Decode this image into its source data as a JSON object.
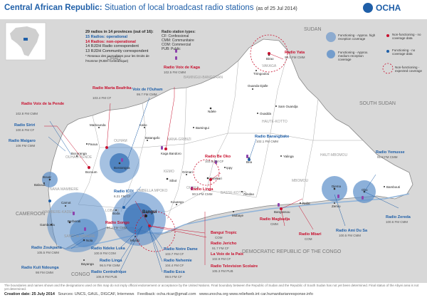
{
  "header": {
    "title_main": "Central African Republic:",
    "title_sub": "Situation of local broadcast radio stations",
    "title_date": "(as of 25 Jul 2014)",
    "org": "OCHA"
  },
  "stats": {
    "line1": "29 radios in 14 provinces (out of 16):",
    "line2": "15 Radios: operational",
    "line3": "14 Radios: non-operational",
    "line4": "14 RJDH Radio correspondent",
    "line5": "13 RJDH Community correspondent",
    "line6": "* Reseaux des journalistes pour les Droits de l'Homme (RJDH-Centrafrique)"
  },
  "types": {
    "heading": "Radio station types:",
    "items": [
      "CF: Confessional",
      "CMM: Communitaire",
      "COM: Commercial",
      "PUB: Public"
    ]
  },
  "legend": {
    "items": [
      "Functioning - Approx. high reception coverage",
      "Non-functioning - no coverage data",
      "Functioning - Approx. medium reception coverage",
      "Functioning - no coverage data",
      "Non-functioning - expected coverage"
    ]
  },
  "countries": [
    "CHAD",
    "SUDAN",
    "SOUTH SUDAN",
    "CAMEROON",
    "CONGO",
    "DEMOCRATIC REPUBLIC OF THE CONGO"
  ],
  "prefectures": [
    "VAKAGA",
    "BAMINGUI-BANGORAN",
    "HAUTE-KOTTO",
    "HAUT-MBOMOU",
    "MBOMOU",
    "BASSE-KOTTO",
    "NANA-GRIBIZI",
    "OUHAM",
    "OUHAM PENDE",
    "NANA MAMBERE",
    "MAMBERE-KADEI",
    "SANGHA-MBAERE",
    "LOBAYE",
    "OMBELLA MPOKO",
    "KEMO",
    "OUAKA"
  ],
  "towns": [
    "Birao",
    "Tiringoulou",
    "Ouanda Djalle",
    "Sam Ouandja",
    "Ouadda",
    "Ndele",
    "Bamingui",
    "Kaga Bandoro",
    "Batangafo",
    "Kabo",
    "Markounda",
    "Bossangoa",
    "Bozoum",
    "Bocaranga",
    "Paoua",
    "Bouar",
    "Baboua",
    "Carnot",
    "Berberati",
    "Gamboula",
    "Nola",
    "Bayanga",
    "Boda",
    "Mbaiki",
    "Bangui",
    "Sibut",
    "Bambari",
    "Ippy",
    "Bria",
    "Yalinga",
    "Alindao",
    "Mobaye",
    "Bangassou",
    "Rafai",
    "Zemio",
    "Obo",
    "Djema",
    "Bambouti",
    "Kouango",
    "Grimari",
    "Dekoa",
    "Bouca",
    "Kembe",
    "Mingala",
    "Gambo",
    "Ouango",
    "Bakouma",
    "Bossembele",
    "Yaloke",
    "Bozoum",
    "Bouar"
  ],
  "radios": [
    {
      "name": "Radio Voix de Kaga",
      "freq": "102.5 FM CMM",
      "color": "#c8102e"
    },
    {
      "name": "Radio Marta Beafrika",
      "freq": "103.4 FM CF",
      "color": "#c8102e"
    },
    {
      "name": "Voix de l'Ouham",
      "freq": "99.7 FM CMM",
      "color": "#1f5fa8"
    },
    {
      "name": "Radio Voix de la Pende",
      "freq": "102.8 FM CMM",
      "color": "#c8102e"
    },
    {
      "name": "Radio Siriri",
      "freq": "100.6 FM CF",
      "color": "#1f5fa8"
    },
    {
      "name": "Radio Maigaro",
      "freq": "106 FM CMM",
      "color": "#1f5fa8"
    },
    {
      "name": "Radio Yata",
      "freq": "98.0 FM CMM",
      "color": "#c8102e"
    },
    {
      "name": "Radio Barangbake",
      "freq": "102.1 FM CMM",
      "color": "#1f5fa8"
    },
    {
      "name": "Radio Be Oko",
      "freq": "103.5 FM CF",
      "color": "#c8102e"
    },
    {
      "name": "Radio Linga",
      "freq": "90.5 FM CMM",
      "color": "#c8102e"
    },
    {
      "name": "Radio ICDI",
      "freq": "6.21 FM CF",
      "color": "#1f5fa8"
    },
    {
      "name": "Radio Songo",
      "freq": "97.3 FM CMM",
      "color": "#c8102e"
    },
    {
      "name": "Radio Yemusse",
      "freq": "91.8 FM CMM",
      "color": "#1f5fa8"
    },
    {
      "name": "Radio Zereda",
      "freq": "100.6 FM CMM",
      "color": "#1f5fa8"
    },
    {
      "name": "Radio Ami Du Sa",
      "freq": "100.5 FM CMM",
      "color": "#1f5fa8"
    },
    {
      "name": "Radio Magbadja",
      "freq": "CMM",
      "color": "#c8102e"
    },
    {
      "name": "Radio Mbari",
      "freq": "COM",
      "color": "#c8102e"
    },
    {
      "name": "Radio Zoukpana",
      "freq": "105.5 FM CMM",
      "color": "#1f5fa8"
    },
    {
      "name": "Radio Kuli Ndounga",
      "freq": "98 FM CMM",
      "color": "#1f5fa8"
    },
    {
      "name": "Radio Ndeke Luka",
      "freq": "100.9 FM COM",
      "color": "#1f5fa8"
    },
    {
      "name": "Radio Linga",
      "freq": "96.5 FM CMM",
      "color": "#1f5fa8"
    },
    {
      "name": "Radio Centrafrique",
      "freq": "106.9 FM PUB",
      "color": "#1f5fa8"
    },
    {
      "name": "Radio Notre Dame",
      "freq": "103.7 FM CF",
      "color": "#1f5fa8"
    },
    {
      "name": "Radio Nehemie",
      "freq": "104.4 FM CF",
      "color": "#1f5fa8"
    },
    {
      "name": "Radio Esca",
      "freq": "99.5 FM CF",
      "color": "#1f5fa8"
    },
    {
      "name": "Bangui Tropic",
      "freq": "COM",
      "color": "#c8102e"
    },
    {
      "name": "Radio Jericho",
      "freq": "91.7 FM CF",
      "color": "#c8102e"
    },
    {
      "name": "La Voix de la Paix",
      "freq": "102.9 FM CF",
      "color": "#c8102e"
    },
    {
      "name": "Radio Television Scolaire",
      "freq": "105.3 FM PUB",
      "color": "#c8102e"
    }
  ],
  "footer": {
    "note": "The boundaries and names shown and the designations used on this map do not imply official endorsement or acceptance by the United Nations. Final boundary between the Republic of Sudan and the Republic of South Sudan has not yet been determined. Final status of the Abyei area is not yet determined.",
    "creation": "Creation date: 25 July 2014",
    "sources": "Sources: UNCS, GAUL, DIGCAF, Internews",
    "feedback": "Feedback: ocha.rtcar@gmail.com",
    "urls": "www.unocha.org   www.reliefweb.int   car.humanitarianresponse.info"
  }
}
